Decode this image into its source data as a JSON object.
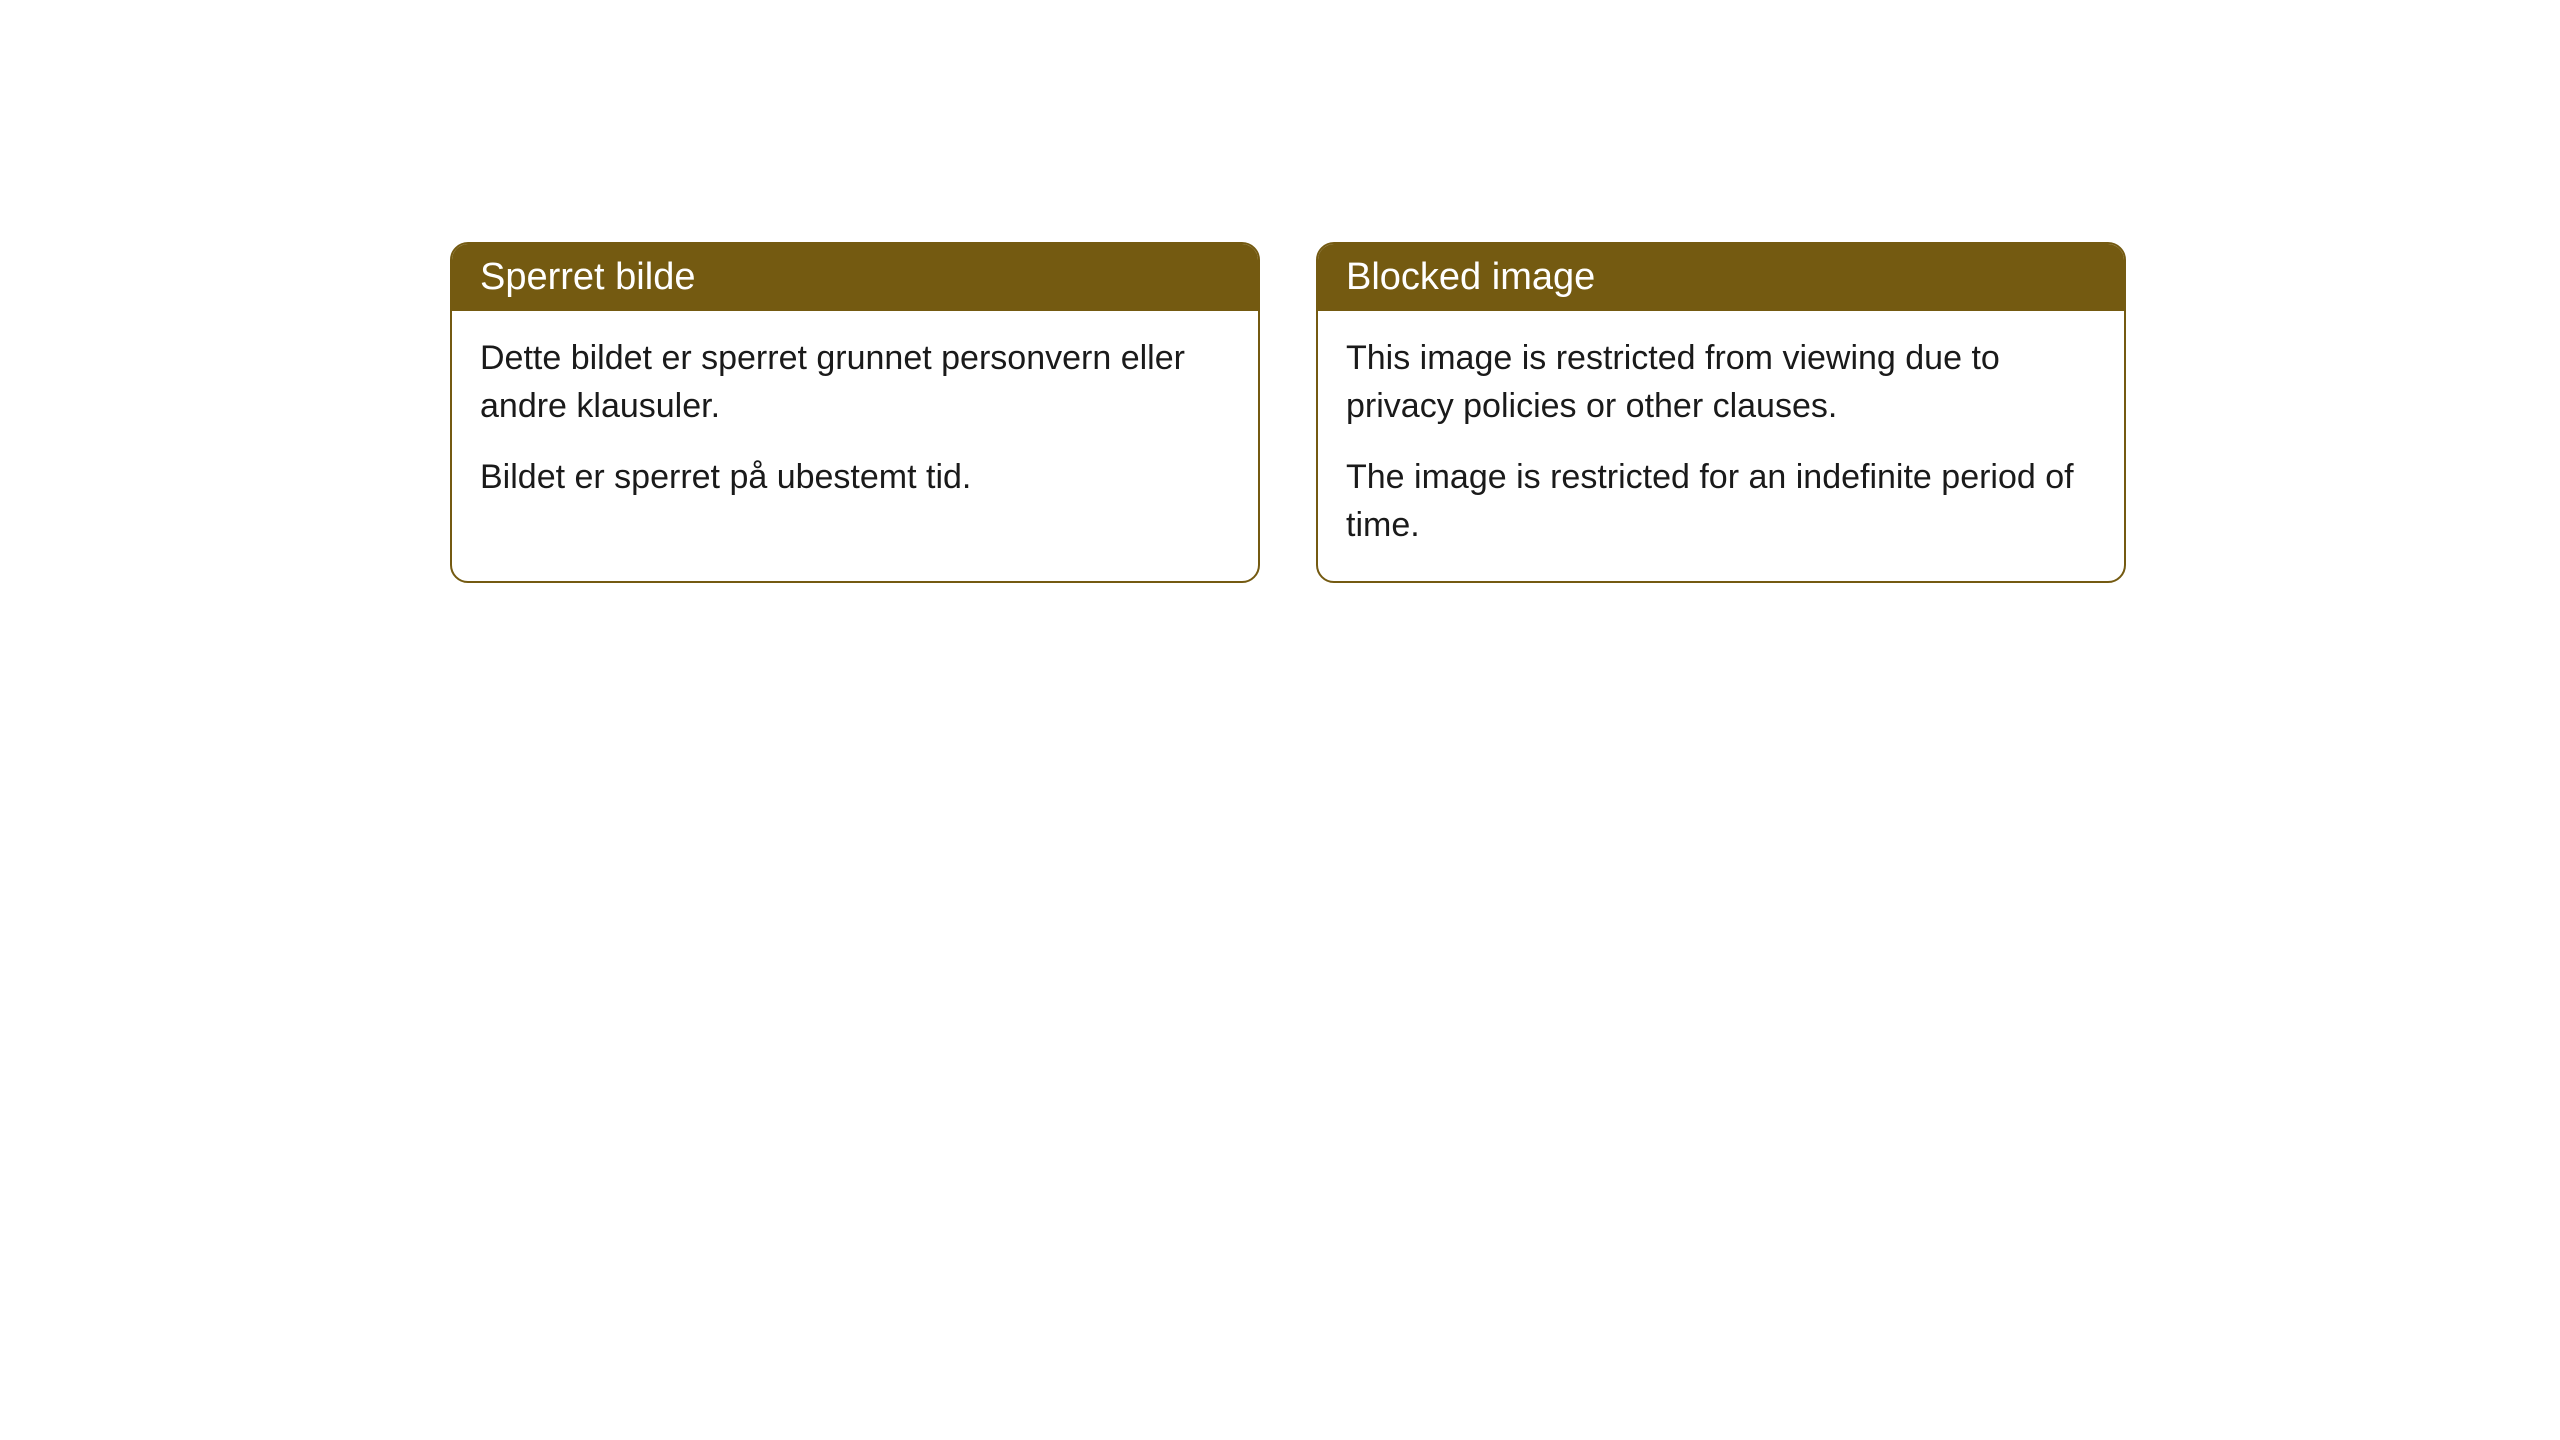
{
  "cards": [
    {
      "title": "Sperret bilde",
      "paragraph1": "Dette bildet er sperret grunnet personvern eller andre klausuler.",
      "paragraph2": "Bildet er sperret på ubestemt tid."
    },
    {
      "title": "Blocked image",
      "paragraph1": "This image is restricted from viewing due to privacy policies or other clauses.",
      "paragraph2": "The image is restricted for an indefinite period of time."
    }
  ],
  "styling": {
    "header_bg_color": "#745a11",
    "header_text_color": "#ffffff",
    "border_color": "#745a11",
    "body_bg_color": "#ffffff",
    "body_text_color": "#1a1a1a",
    "border_radius": 18,
    "title_fontsize": 38,
    "body_fontsize": 34
  }
}
